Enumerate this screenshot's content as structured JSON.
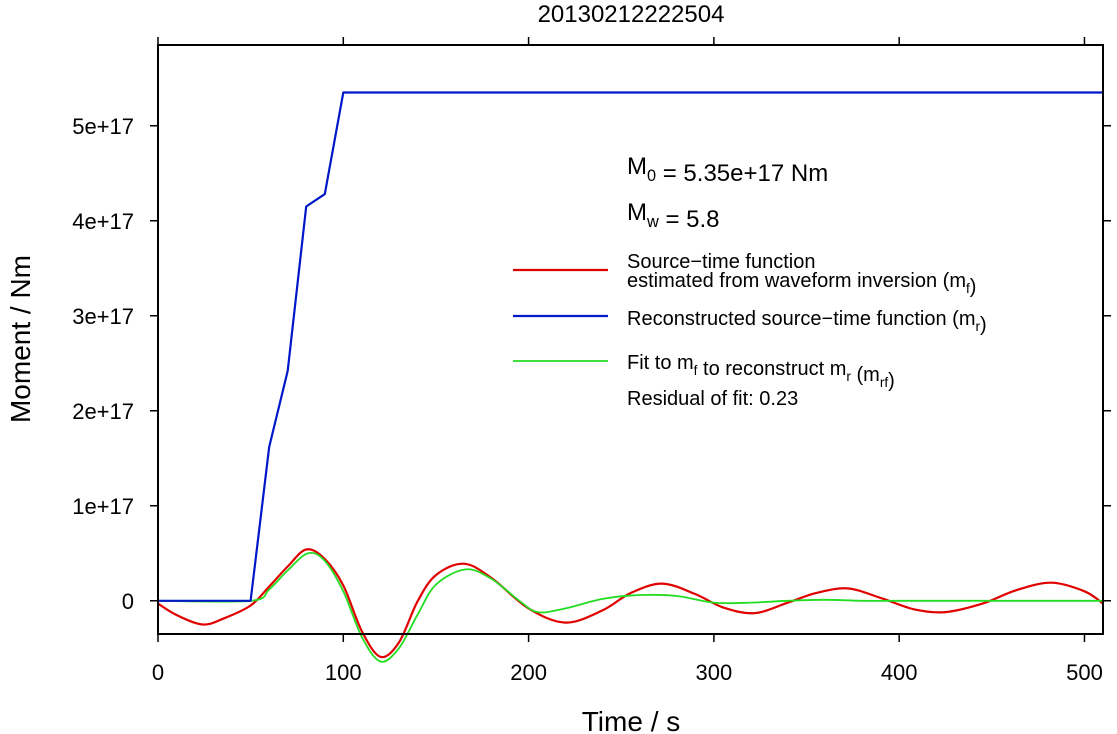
{
  "chart_data": {
    "type": "line",
    "title": "20130212222504",
    "xlabel": "Time / s",
    "ylabel": "Moment / Nm",
    "xlim": [
      0,
      510
    ],
    "ylim": [
      -3.5e+16,
      5.85e+17
    ],
    "x_ticks": [
      0,
      100,
      200,
      300,
      400,
      500
    ],
    "x_tick_labels": [
      "0",
      "100",
      "200",
      "300",
      "400",
      "500"
    ],
    "y_ticks": [
      0,
      1e+17,
      2e+17,
      3e+17,
      4e+17,
      5e+17
    ],
    "y_tick_labels": [
      "0",
      "1e+17",
      "2e+17",
      "3e+17",
      "4e+17",
      "5e+17"
    ],
    "grid": false,
    "annotations": {
      "m0": {
        "base": "M",
        "sub": "0",
        "rest": " = 5.35e+17 Nm"
      },
      "mw": {
        "base": "M",
        "sub": "w",
        "rest": " = 5.8"
      },
      "residual": "Residual of fit: 0.23"
    },
    "legend_position": "right-center",
    "legend": [
      {
        "series": "mf",
        "lines": [
          [
            {
              "t": "Source−time function"
            }
          ],
          [
            {
              "t": "estimated from waveform inversion (m"
            },
            {
              "t": "f",
              "sub": true
            },
            {
              "t": ")"
            }
          ]
        ]
      },
      {
        "series": "mr",
        "lines": [
          [
            {
              "t": "Reconstructed source−time function (m"
            },
            {
              "t": "r",
              "sub": true
            },
            {
              "t": ")"
            }
          ]
        ]
      },
      {
        "series": "mrf",
        "lines": [
          [
            {
              "t": "Fit to m"
            },
            {
              "t": "f",
              "sub": true
            },
            {
              "t": " to reconstruct m"
            },
            {
              "t": "r",
              "sub": true
            },
            {
              "t": " (m"
            },
            {
              "t": "rf",
              "sub": true
            },
            {
              "t": ")"
            }
          ]
        ]
      }
    ],
    "series": [
      {
        "id": "mf",
        "color": "#e00000",
        "x": [
          0,
          10,
          24,
          35,
          50,
          60,
          70,
          80,
          90,
          100,
          110,
          120,
          130,
          140,
          150,
          165,
          180,
          200,
          220,
          240,
          255,
          272,
          290,
          305,
          322,
          340,
          355,
          372,
          390,
          408,
          425,
          445,
          463,
          482,
          500,
          510
        ],
        "y": [
          -3000000000000000.0,
          -1.5e+16,
          -2.5e+16,
          -1.9e+16,
          -5000000000000000.0,
          1.5e+16,
          3.6e+16,
          5.4e+16,
          4.4e+16,
          1.6e+16,
          -3.2e+16,
          -5.9e+16,
          -4.4e+16,
          -1000000000000000.0,
          2.7e+16,
          3.9e+16,
          2.4e+16,
          -8000000000000000.0,
          -2.3e+16,
          -1e+16,
          8000000000000000.0,
          1.8e+16,
          7000000000000000.0,
          -7000000000000000.0,
          -1.3e+16,
          -2000000000000000.0,
          8000000000000000.0,
          1.3e+16,
          3000000000000000.0,
          -9000000000000000.0,
          -1.2e+16,
          -3000000000000000.0,
          1.1e+16,
          1.9e+16,
          1e+16,
          -3000000000000000.0
        ]
      },
      {
        "id": "mr",
        "color": "#0018c8",
        "x": [
          0,
          50,
          60,
          70,
          80,
          90,
          100,
          510
        ],
        "y": [
          0,
          0,
          1.62e+17,
          2.42e+17,
          4.15e+17,
          4.28e+17,
          5.35e+17,
          5.35e+17
        ]
      },
      {
        "id": "mrf",
        "color": "#22dd22",
        "x": [
          0,
          50,
          60,
          70,
          81,
          90,
          100,
          110,
          120,
          130,
          140,
          150,
          166,
          180,
          195,
          205,
          220,
          240,
          260,
          280,
          300,
          320,
          340,
          360,
          380,
          400,
          420,
          440,
          460,
          480,
          510
        ],
        "y": [
          0,
          0,
          1.2e+16,
          3.2e+16,
          5e+16,
          4.2e+16,
          1e+16,
          -3.8e+16,
          -6.4e+16,
          -5e+16,
          -1.5e+16,
          1.7e+16,
          3.3e+16,
          2.3e+16,
          0,
          -1.2e+16,
          -8000000000000000.0,
          2000000000000000.0,
          6000000000000000.0,
          5000000000000000.0,
          -2000000000000000.0,
          -2000000000000000.0,
          0,
          1000000000000000.0,
          0,
          0,
          0,
          0,
          0,
          0,
          0
        ]
      }
    ]
  }
}
